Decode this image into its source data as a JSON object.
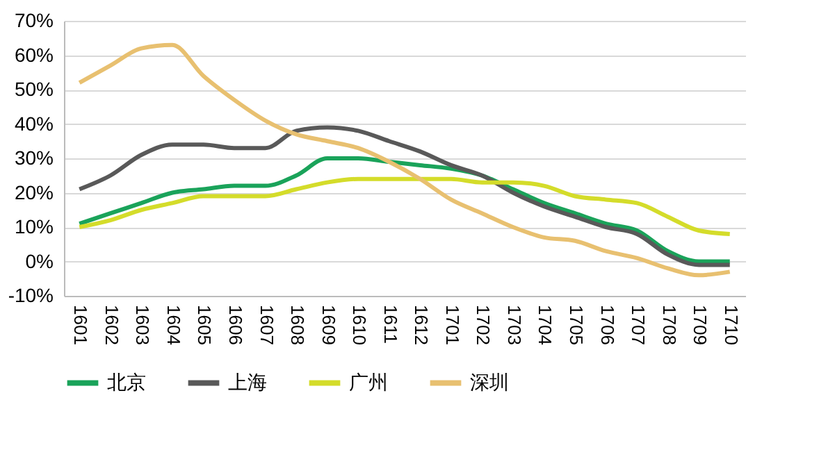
{
  "chart_data": {
    "type": "line",
    "categories": [
      "1601",
      "1602",
      "1603",
      "1604",
      "1605",
      "1606",
      "1607",
      "1608",
      "1609",
      "1610",
      "1611",
      "1612",
      "1701",
      "1702",
      "1703",
      "1704",
      "1705",
      "1706",
      "1707",
      "1708",
      "1709",
      "1710"
    ],
    "series": [
      {
        "name": "北京",
        "color": "#1aa35a",
        "values": [
          11,
          14,
          17,
          20,
          21,
          22,
          22,
          25,
          30,
          30,
          29,
          28,
          27,
          25,
          21,
          17,
          14,
          11,
          9,
          3,
          0,
          0
        ]
      },
      {
        "name": "上海",
        "color": "#595959",
        "values": [
          21,
          25,
          31,
          34,
          34,
          33,
          33,
          38,
          39,
          38,
          35,
          32,
          28,
          25,
          20,
          16,
          13,
          10,
          8,
          2,
          -1,
          -1
        ]
      },
      {
        "name": "广州",
        "color": "#d4dc2a",
        "values": [
          10,
          12,
          15,
          17,
          19,
          19,
          19,
          21,
          23,
          24,
          24,
          24,
          24,
          23,
          23,
          22,
          19,
          18,
          17,
          13,
          9,
          8
        ]
      },
      {
        "name": "深圳",
        "color": "#e8c070",
        "values": [
          52,
          57,
          62,
          63,
          54,
          47,
          41,
          37,
          35,
          33,
          29,
          24,
          18,
          14,
          10,
          7,
          6,
          3,
          1,
          -2,
          -4,
          -3
        ]
      }
    ],
    "ylim": [
      -10,
      70
    ],
    "yticks": [
      {
        "value": -10,
        "label": "-10%"
      },
      {
        "value": 0,
        "label": "0%"
      },
      {
        "value": 10,
        "label": "10%"
      },
      {
        "value": 20,
        "label": "20%"
      },
      {
        "value": 30,
        "label": "30%"
      },
      {
        "value": 40,
        "label": "40%"
      },
      {
        "value": 50,
        "label": "50%"
      },
      {
        "value": 60,
        "label": "60%"
      },
      {
        "value": 70,
        "label": "70%"
      }
    ],
    "grid": "y",
    "legend": "bottom",
    "marker": "none",
    "line_style": "solid"
  }
}
